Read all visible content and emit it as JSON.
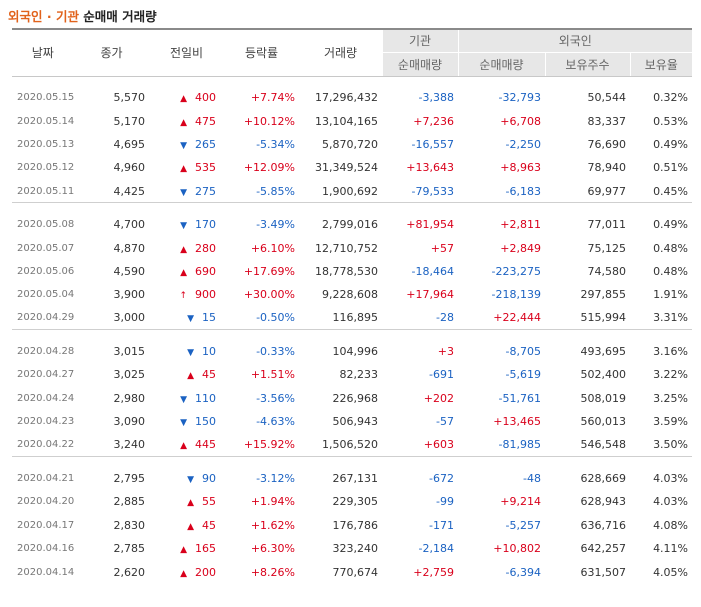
{
  "title": {
    "org": "외국인 · 기관",
    "rest": " 순매매 거래량"
  },
  "headers": {
    "date": "날짜",
    "close": "종가",
    "change": "전일비",
    "rate": "등락률",
    "volume": "거래량",
    "inst": "기관",
    "foreign": "외국인",
    "inst_net": "순매매량",
    "foreign_net": "순매매량",
    "holdings": "보유주수",
    "ratio": "보유율"
  },
  "colors": {
    "up": "#d9001b",
    "down": "#1b62c2",
    "title_accent": "#e1621b"
  },
  "groups": [
    [
      {
        "date": "2020.05.15",
        "close": "5,570",
        "dir": "up",
        "arrow": "▲",
        "change": "400",
        "rate": "+7.74%",
        "volume": "17,296,432",
        "inst": "-3,388",
        "foreign": "-32,793",
        "holdings": "50,544",
        "ratio": "0.32%"
      },
      {
        "date": "2020.05.14",
        "close": "5,170",
        "dir": "up",
        "arrow": "▲",
        "change": "475",
        "rate": "+10.12%",
        "volume": "13,104,165",
        "inst": "+7,236",
        "foreign": "+6,708",
        "holdings": "83,337",
        "ratio": "0.53%"
      },
      {
        "date": "2020.05.13",
        "close": "4,695",
        "dir": "down",
        "arrow": "▼",
        "change": "265",
        "rate": "-5.34%",
        "volume": "5,870,720",
        "inst": "-16,557",
        "foreign": "-2,250",
        "holdings": "76,690",
        "ratio": "0.49%"
      },
      {
        "date": "2020.05.12",
        "close": "4,960",
        "dir": "up",
        "arrow": "▲",
        "change": "535",
        "rate": "+12.09%",
        "volume": "31,349,524",
        "inst": "+13,643",
        "foreign": "+8,963",
        "holdings": "78,940",
        "ratio": "0.51%"
      },
      {
        "date": "2020.05.11",
        "close": "4,425",
        "dir": "down",
        "arrow": "▼",
        "change": "275",
        "rate": "-5.85%",
        "volume": "1,900,692",
        "inst": "-79,533",
        "foreign": "-6,183",
        "holdings": "69,977",
        "ratio": "0.45%"
      }
    ],
    [
      {
        "date": "2020.05.08",
        "close": "4,700",
        "dir": "down",
        "arrow": "▼",
        "change": "170",
        "rate": "-3.49%",
        "volume": "2,799,016",
        "inst": "+81,954",
        "foreign": "+2,811",
        "holdings": "77,011",
        "ratio": "0.49%"
      },
      {
        "date": "2020.05.07",
        "close": "4,870",
        "dir": "up",
        "arrow": "▲",
        "change": "280",
        "rate": "+6.10%",
        "volume": "12,710,752",
        "inst": "+57",
        "foreign": "+2,849",
        "holdings": "75,125",
        "ratio": "0.48%"
      },
      {
        "date": "2020.05.06",
        "close": "4,590",
        "dir": "up",
        "arrow": "▲",
        "change": "690",
        "rate": "+17.69%",
        "volume": "18,778,530",
        "inst": "-18,464",
        "foreign": "-223,275",
        "holdings": "74,580",
        "ratio": "0.48%"
      },
      {
        "date": "2020.05.04",
        "close": "3,900",
        "dir": "up",
        "arrow": "↑",
        "change": "900",
        "rate": "+30.00%",
        "volume": "9,228,608",
        "inst": "+17,964",
        "foreign": "-218,139",
        "holdings": "297,855",
        "ratio": "1.91%"
      },
      {
        "date": "2020.04.29",
        "close": "3,000",
        "dir": "down",
        "arrow": "▼",
        "change": "15",
        "rate": "-0.50%",
        "volume": "116,895",
        "inst": "-28",
        "foreign": "+22,444",
        "holdings": "515,994",
        "ratio": "3.31%"
      }
    ],
    [
      {
        "date": "2020.04.28",
        "close": "3,015",
        "dir": "down",
        "arrow": "▼",
        "change": "10",
        "rate": "-0.33%",
        "volume": "104,996",
        "inst": "+3",
        "foreign": "-8,705",
        "holdings": "493,695",
        "ratio": "3.16%"
      },
      {
        "date": "2020.04.27",
        "close": "3,025",
        "dir": "up",
        "arrow": "▲",
        "change": "45",
        "rate": "+1.51%",
        "volume": "82,233",
        "inst": "-691",
        "foreign": "-5,619",
        "holdings": "502,400",
        "ratio": "3.22%"
      },
      {
        "date": "2020.04.24",
        "close": "2,980",
        "dir": "down",
        "arrow": "▼",
        "change": "110",
        "rate": "-3.56%",
        "volume": "226,968",
        "inst": "+202",
        "foreign": "-51,761",
        "holdings": "508,019",
        "ratio": "3.25%"
      },
      {
        "date": "2020.04.23",
        "close": "3,090",
        "dir": "down",
        "arrow": "▼",
        "change": "150",
        "rate": "-4.63%",
        "volume": "506,943",
        "inst": "-57",
        "foreign": "+13,465",
        "holdings": "560,013",
        "ratio": "3.59%"
      },
      {
        "date": "2020.04.22",
        "close": "3,240",
        "dir": "up",
        "arrow": "▲",
        "change": "445",
        "rate": "+15.92%",
        "volume": "1,506,520",
        "inst": "+603",
        "foreign": "-81,985",
        "holdings": "546,548",
        "ratio": "3.50%"
      }
    ],
    [
      {
        "date": "2020.04.21",
        "close": "2,795",
        "dir": "down",
        "arrow": "▼",
        "change": "90",
        "rate": "-3.12%",
        "volume": "267,131",
        "inst": "-672",
        "foreign": "-48",
        "holdings": "628,669",
        "ratio": "4.03%"
      },
      {
        "date": "2020.04.20",
        "close": "2,885",
        "dir": "up",
        "arrow": "▲",
        "change": "55",
        "rate": "+1.94%",
        "volume": "229,305",
        "inst": "-99",
        "foreign": "+9,214",
        "holdings": "628,943",
        "ratio": "4.03%"
      },
      {
        "date": "2020.04.17",
        "close": "2,830",
        "dir": "up",
        "arrow": "▲",
        "change": "45",
        "rate": "+1.62%",
        "volume": "176,786",
        "inst": "-171",
        "foreign": "-5,257",
        "holdings": "636,716",
        "ratio": "4.08%"
      },
      {
        "date": "2020.04.16",
        "close": "2,785",
        "dir": "up",
        "arrow": "▲",
        "change": "165",
        "rate": "+6.30%",
        "volume": "323,240",
        "inst": "-2,184",
        "foreign": "+10,802",
        "holdings": "642,257",
        "ratio": "4.11%"
      },
      {
        "date": "2020.04.14",
        "close": "2,620",
        "dir": "up",
        "arrow": "▲",
        "change": "200",
        "rate": "+8.26%",
        "volume": "770,674",
        "inst": "+2,759",
        "foreign": "-6,394",
        "holdings": "631,507",
        "ratio": "4.05%"
      }
    ]
  ]
}
